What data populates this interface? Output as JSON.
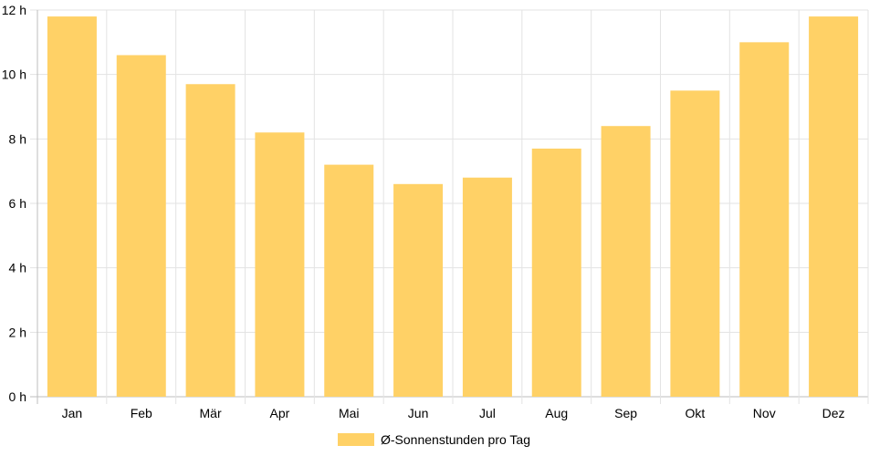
{
  "chart_data": {
    "type": "bar",
    "categories": [
      "Jan",
      "Feb",
      "Mär",
      "Apr",
      "Mai",
      "Jun",
      "Jul",
      "Aug",
      "Sep",
      "Okt",
      "Nov",
      "Dez"
    ],
    "series": [
      {
        "name": "Ø-Sonnenstunden pro Tag",
        "values": [
          11.8,
          10.6,
          9.7,
          8.2,
          7.2,
          6.6,
          6.8,
          7.7,
          8.4,
          9.5,
          11.0,
          11.8
        ],
        "color": "#FFD166"
      }
    ],
    "y_ticks": [
      "0 h",
      "2 h",
      "4 h",
      "6 h",
      "8 h",
      "10 h",
      "12 h"
    ],
    "ylim": [
      0,
      12
    ],
    "grid": true,
    "legend_position": "bottom"
  }
}
